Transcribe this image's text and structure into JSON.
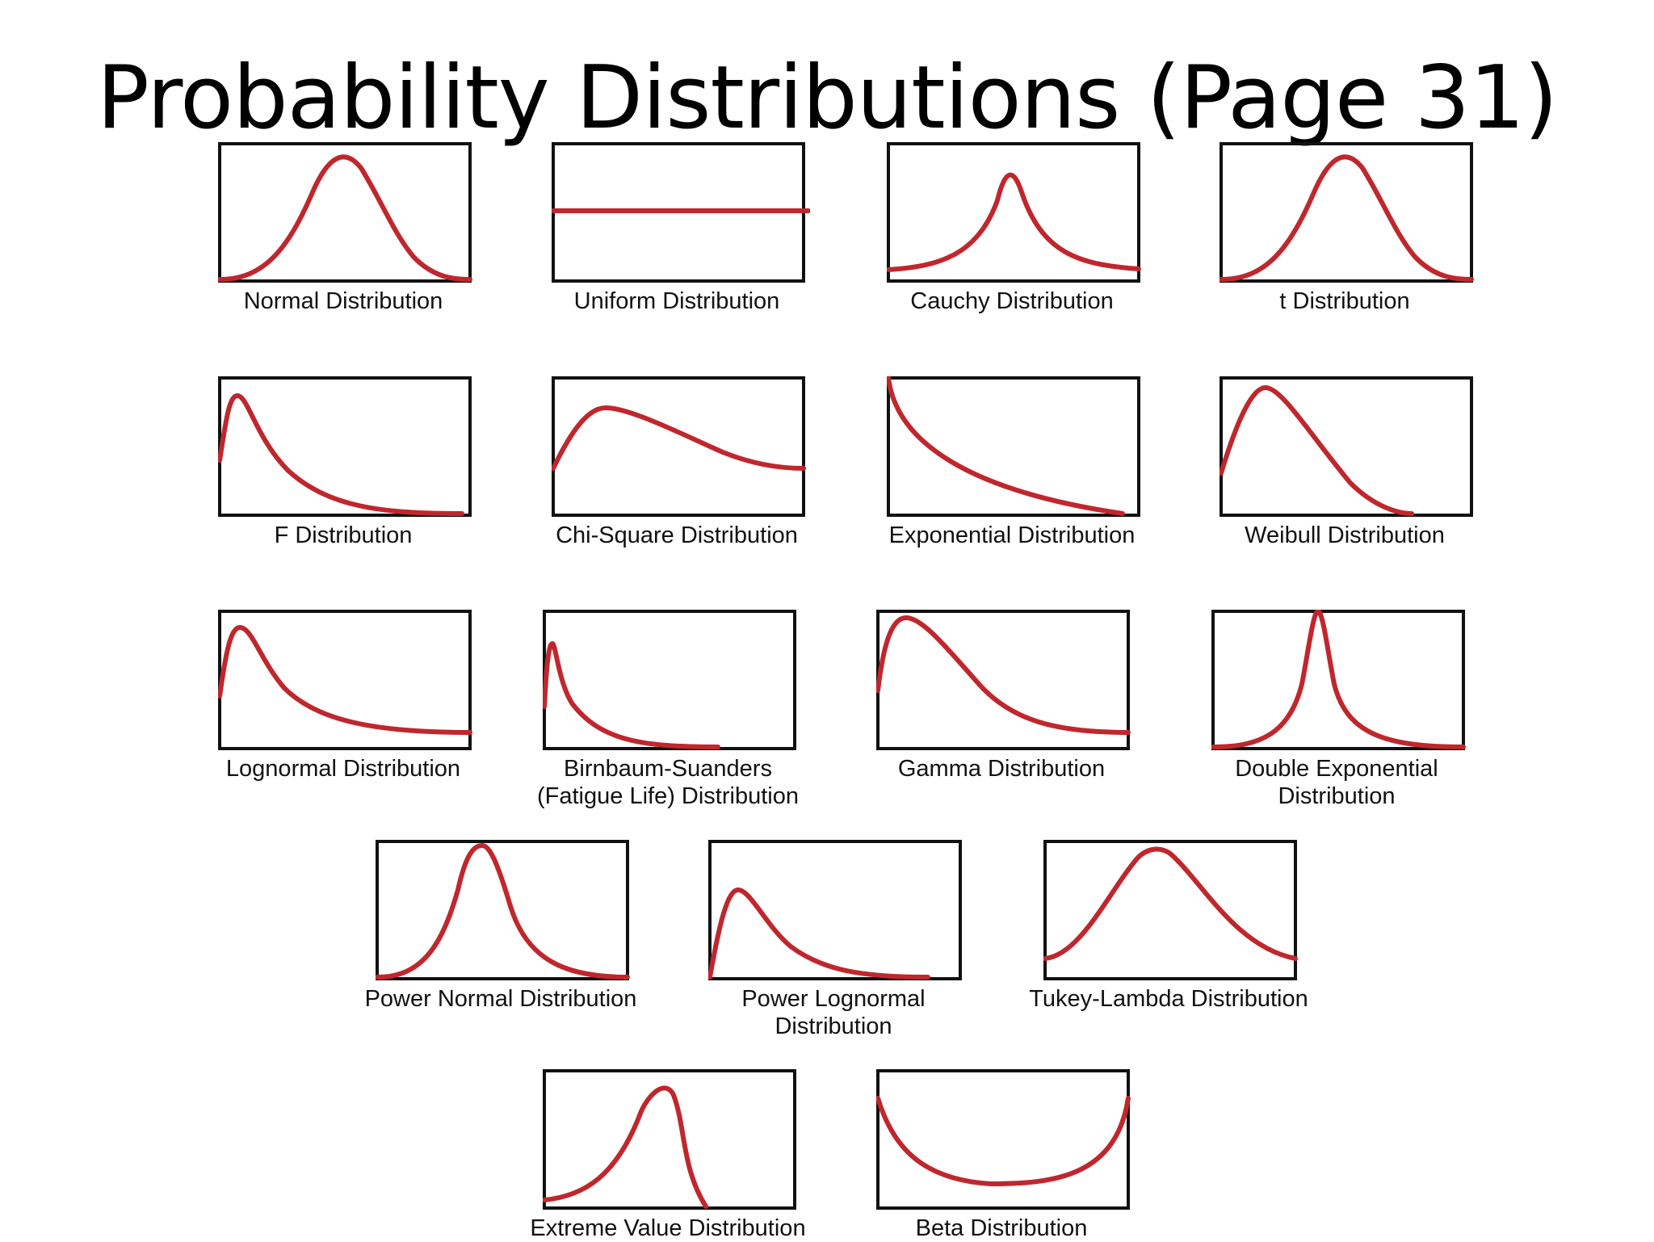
{
  "title": "Probability Distributions (Page 31)",
  "colors": {
    "curve": "#c0272d",
    "frame": "#111111"
  },
  "distributions": [
    {
      "label": "Normal Distribution",
      "shape": "normal"
    },
    {
      "label": "Uniform Distribution",
      "shape": "uniform"
    },
    {
      "label": "Cauchy Distribution",
      "shape": "cauchy"
    },
    {
      "label": "t Distribution",
      "shape": "t"
    },
    {
      "label": "F Distribution",
      "shape": "f"
    },
    {
      "label": "Chi-Square Distribution",
      "shape": "chisquare"
    },
    {
      "label": "Exponential Distribution",
      "shape": "exponential"
    },
    {
      "label": "Weibull Distribution",
      "shape": "weibull"
    },
    {
      "label": "Lognormal Distribution",
      "shape": "lognormal"
    },
    {
      "label": "Birnbaum-Suanders\n(Fatigue Life) Distribution",
      "shape": "birnbaum"
    },
    {
      "label": "Gamma Distribution",
      "shape": "gamma"
    },
    {
      "label": "Double Exponential\nDistribution",
      "shape": "doubleexp"
    },
    {
      "label": "Power Normal Distribution",
      "shape": "powernormal"
    },
    {
      "label": "Power Lognormal\nDistribution",
      "shape": "powerlognormal"
    },
    {
      "label": "Tukey-Lambda Distribution",
      "shape": "tukey"
    },
    {
      "label": "Extreme Value Distribution",
      "shape": "extremevalue"
    },
    {
      "label": "Beta Distribution",
      "shape": "beta"
    }
  ]
}
